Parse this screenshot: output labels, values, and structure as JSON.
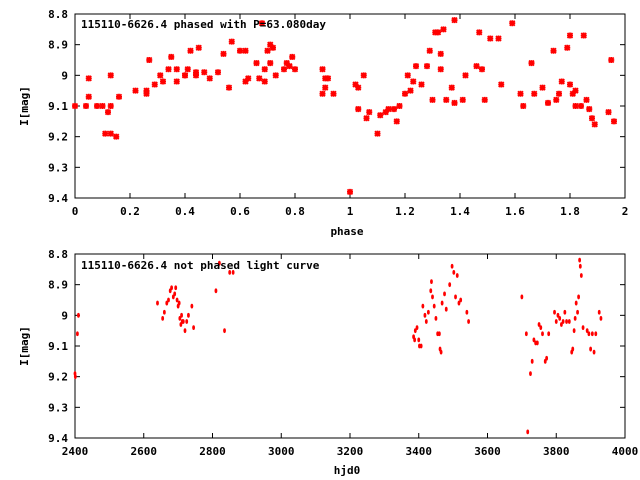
{
  "colors": {
    "points": "#ff0000",
    "axes": "#000000",
    "background": "#ffffff"
  },
  "chart_data": [
    {
      "type": "scatter",
      "title": "115110-6626.4 phased with P=63.080day",
      "xlabel": "phase",
      "ylabel": "I[mag]",
      "xlim": [
        0,
        2
      ],
      "ylim": [
        9.4,
        8.8
      ],
      "y_inverted": true,
      "xticks": [
        "0",
        "0.2",
        "0.4",
        "0.6",
        "0.8",
        "1",
        "1.2",
        "1.4",
        "1.6",
        "1.8",
        "2"
      ],
      "yticks": [
        "8.8",
        "8.9",
        "9",
        "9.1",
        "9.2",
        "9.3",
        "9.4"
      ],
      "marker": "cross",
      "points": [
        [
          0.0,
          9.1
        ],
        [
          0.04,
          9.1
        ],
        [
          0.05,
          9.01
        ],
        [
          0.05,
          9.07
        ],
        [
          0.08,
          9.1
        ],
        [
          0.1,
          9.1
        ],
        [
          0.11,
          9.19
        ],
        [
          0.12,
          9.12
        ],
        [
          0.13,
          9.19
        ],
        [
          0.13,
          9.1
        ],
        [
          0.13,
          9.0
        ],
        [
          0.15,
          9.2
        ],
        [
          0.16,
          9.07
        ],
        [
          0.22,
          9.05
        ],
        [
          0.26,
          9.05
        ],
        [
          0.26,
          9.06
        ],
        [
          0.27,
          8.95
        ],
        [
          0.29,
          9.03
        ],
        [
          0.31,
          9.0
        ],
        [
          0.32,
          9.02
        ],
        [
          0.34,
          8.98
        ],
        [
          0.35,
          8.94
        ],
        [
          0.37,
          8.98
        ],
        [
          0.37,
          9.02
        ],
        [
          0.4,
          9.0
        ],
        [
          0.4,
          9.0
        ],
        [
          0.41,
          8.98
        ],
        [
          0.42,
          8.92
        ],
        [
          0.44,
          9.0
        ],
        [
          0.44,
          8.99
        ],
        [
          0.45,
          8.91
        ],
        [
          0.47,
          8.99
        ],
        [
          0.49,
          9.01
        ],
        [
          0.52,
          8.99
        ],
        [
          0.54,
          8.93
        ],
        [
          0.56,
          9.04
        ],
        [
          0.57,
          8.89
        ],
        [
          0.6,
          8.92
        ],
        [
          0.62,
          8.92
        ],
        [
          0.63,
          9.01
        ],
        [
          0.62,
          9.02
        ],
        [
          0.66,
          8.96
        ],
        [
          0.67,
          9.01
        ],
        [
          0.68,
          8.83
        ],
        [
          0.69,
          8.98
        ],
        [
          0.69,
          9.02
        ],
        [
          0.7,
          8.92
        ],
        [
          0.71,
          8.96
        ],
        [
          0.71,
          8.9
        ],
        [
          0.72,
          8.91
        ],
        [
          0.73,
          9.0
        ],
        [
          0.76,
          8.98
        ],
        [
          0.77,
          8.96
        ],
        [
          0.78,
          8.97
        ],
        [
          0.79,
          8.94
        ],
        [
          0.8,
          8.98
        ],
        [
          0.9,
          8.98
        ],
        [
          0.9,
          9.06
        ],
        [
          0.91,
          9.01
        ],
        [
          0.91,
          9.04
        ],
        [
          0.92,
          9.01
        ],
        [
          0.94,
          9.06
        ],
        [
          1.0,
          9.38
        ],
        [
          1.02,
          9.03
        ],
        [
          1.03,
          9.11
        ],
        [
          1.03,
          9.04
        ],
        [
          1.05,
          9.0
        ],
        [
          1.06,
          9.14
        ],
        [
          1.07,
          9.12
        ],
        [
          1.1,
          9.19
        ],
        [
          1.11,
          9.13
        ],
        [
          1.13,
          9.12
        ],
        [
          1.14,
          9.11
        ],
        [
          1.16,
          9.11
        ],
        [
          1.17,
          9.15
        ],
        [
          1.18,
          9.1
        ],
        [
          1.2,
          9.06
        ],
        [
          1.21,
          9.0
        ],
        [
          1.22,
          9.05
        ],
        [
          1.23,
          9.02
        ],
        [
          1.24,
          8.97
        ],
        [
          1.26,
          9.03
        ],
        [
          1.28,
          8.97
        ],
        [
          1.29,
          8.92
        ],
        [
          1.3,
          9.08
        ],
        [
          1.31,
          8.86
        ],
        [
          1.32,
          8.86
        ],
        [
          1.33,
          8.98
        ],
        [
          1.33,
          8.93
        ],
        [
          1.34,
          8.85
        ],
        [
          1.35,
          9.08
        ],
        [
          1.37,
          9.04
        ],
        [
          1.38,
          8.82
        ],
        [
          1.38,
          9.09
        ],
        [
          1.41,
          9.08
        ],
        [
          1.42,
          9.0
        ],
        [
          1.46,
          8.97
        ],
        [
          1.47,
          8.86
        ],
        [
          1.48,
          8.98
        ],
        [
          1.49,
          9.08
        ],
        [
          1.51,
          8.88
        ],
        [
          1.54,
          8.88
        ],
        [
          1.55,
          9.03
        ],
        [
          1.59,
          8.83
        ],
        [
          1.62,
          9.06
        ],
        [
          1.63,
          9.1
        ],
        [
          1.66,
          8.96
        ],
        [
          1.67,
          9.06
        ],
        [
          1.7,
          9.04
        ],
        [
          1.72,
          9.09
        ],
        [
          1.74,
          8.92
        ],
        [
          1.75,
          9.08
        ],
        [
          1.76,
          9.06
        ],
        [
          1.77,
          9.02
        ],
        [
          1.79,
          8.91
        ],
        [
          1.8,
          8.87
        ],
        [
          1.8,
          9.03
        ],
        [
          1.81,
          9.06
        ],
        [
          1.82,
          9.1
        ],
        [
          1.82,
          9.05
        ],
        [
          1.84,
          9.1
        ],
        [
          1.85,
          8.87
        ],
        [
          1.86,
          9.08
        ],
        [
          1.87,
          9.11
        ],
        [
          1.88,
          9.14
        ],
        [
          1.89,
          9.16
        ],
        [
          1.94,
          9.12
        ],
        [
          1.95,
          8.95
        ],
        [
          1.96,
          9.15
        ]
      ]
    },
    {
      "type": "scatter",
      "title": "115110-6626.4 not phased light curve",
      "xlabel": "hjd0",
      "ylabel": "I[mag]",
      "xlim": [
        2400,
        4000
      ],
      "ylim": [
        9.4,
        8.8
      ],
      "y_inverted": true,
      "xticks": [
        "2400",
        "2600",
        "2800",
        "3000",
        "3200",
        "3400",
        "3600",
        "3800",
        "4000"
      ],
      "yticks": [
        "8.8",
        "8.9",
        "9",
        "9.1",
        "9.2",
        "9.3",
        "9.4"
      ],
      "marker": "dot",
      "points": [
        [
          2400,
          9.19
        ],
        [
          2401,
          9.2
        ],
        [
          2407,
          9.06
        ],
        [
          2410,
          9.0
        ],
        [
          2640,
          8.96
        ],
        [
          2655,
          9.01
        ],
        [
          2660,
          8.99
        ],
        [
          2667,
          8.96
        ],
        [
          2672,
          8.95
        ],
        [
          2677,
          8.92
        ],
        [
          2681,
          8.91
        ],
        [
          2686,
          8.94
        ],
        [
          2690,
          8.93
        ],
        [
          2693,
          8.91
        ],
        [
          2697,
          8.95
        ],
        [
          2700,
          8.97
        ],
        [
          2703,
          8.96
        ],
        [
          2705,
          9.01
        ],
        [
          2708,
          9.03
        ],
        [
          2710,
          9.0
        ],
        [
          2712,
          9.02
        ],
        [
          2715,
          9.02
        ],
        [
          2720,
          9.05
        ],
        [
          2725,
          9.02
        ],
        [
          2730,
          9.0
        ],
        [
          2740,
          8.97
        ],
        [
          2745,
          9.04
        ],
        [
          2810,
          8.92
        ],
        [
          2820,
          8.83
        ],
        [
          2835,
          9.05
        ],
        [
          2850,
          8.86
        ],
        [
          2860,
          8.86
        ],
        [
          3385,
          9.07
        ],
        [
          3388,
          9.08
        ],
        [
          3390,
          9.05
        ],
        [
          3395,
          9.04
        ],
        [
          3400,
          9.08
        ],
        [
          3402,
          9.1
        ],
        [
          3407,
          9.1
        ],
        [
          3412,
          8.97
        ],
        [
          3418,
          9.0
        ],
        [
          3422,
          9.02
        ],
        [
          3428,
          8.99
        ],
        [
          3435,
          8.92
        ],
        [
          3437,
          8.89
        ],
        [
          3440,
          8.94
        ],
        [
          3445,
          8.97
        ],
        [
          3450,
          9.01
        ],
        [
          3455,
          9.06
        ],
        [
          3460,
          9.06
        ],
        [
          3462,
          9.11
        ],
        [
          3465,
          9.12
        ],
        [
          3468,
          8.96
        ],
        [
          3475,
          8.93
        ],
        [
          3480,
          8.98
        ],
        [
          3490,
          8.9
        ],
        [
          3497,
          8.84
        ],
        [
          3502,
          8.86
        ],
        [
          3507,
          8.94
        ],
        [
          3512,
          8.87
        ],
        [
          3517,
          8.96
        ],
        [
          3522,
          8.95
        ],
        [
          3540,
          8.99
        ],
        [
          3545,
          9.02
        ],
        [
          3700,
          8.94
        ],
        [
          3713,
          9.06
        ],
        [
          3717,
          9.38
        ],
        [
          3725,
          9.19
        ],
        [
          3730,
          9.15
        ],
        [
          3735,
          9.08
        ],
        [
          3740,
          9.09
        ],
        [
          3745,
          9.09
        ],
        [
          3750,
          9.03
        ],
        [
          3755,
          9.04
        ],
        [
          3760,
          9.06
        ],
        [
          3768,
          9.15
        ],
        [
          3772,
          9.14
        ],
        [
          3778,
          9.06
        ],
        [
          3795,
          8.99
        ],
        [
          3800,
          9.02
        ],
        [
          3805,
          9.0
        ],
        [
          3810,
          9.01
        ],
        [
          3815,
          9.03
        ],
        [
          3820,
          9.02
        ],
        [
          3825,
          8.99
        ],
        [
          3830,
          9.02
        ],
        [
          3838,
          9.02
        ],
        [
          3845,
          9.12
        ],
        [
          3848,
          9.11
        ],
        [
          3852,
          9.05
        ],
        [
          3855,
          9.01
        ],
        [
          3858,
          8.96
        ],
        [
          3862,
          8.99
        ],
        [
          3865,
          8.94
        ],
        [
          3868,
          8.82
        ],
        [
          3870,
          8.84
        ],
        [
          3873,
          8.87
        ],
        [
          3878,
          9.04
        ],
        [
          3890,
          9.05
        ],
        [
          3895,
          9.06
        ],
        [
          3900,
          9.11
        ],
        [
          3905,
          9.06
        ],
        [
          3910,
          9.12
        ],
        [
          3915,
          9.06
        ],
        [
          3925,
          8.99
        ],
        [
          3930,
          9.01
        ]
      ]
    }
  ]
}
